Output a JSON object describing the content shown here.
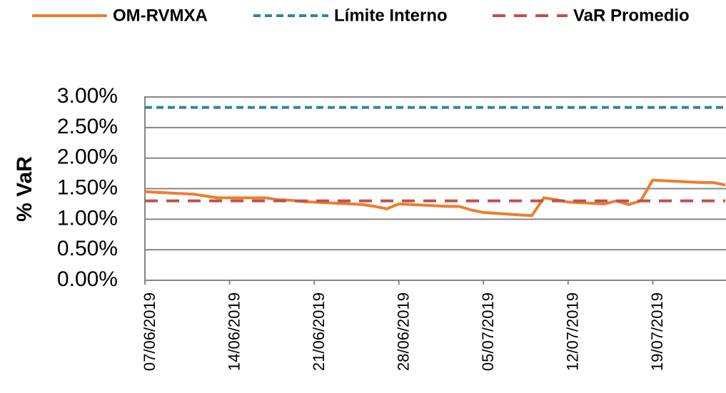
{
  "chart_data": {
    "type": "line",
    "y_label": "% VaR",
    "x": [
      "07/06/2019",
      "10/06/2019",
      "11/06/2019",
      "12/06/2019",
      "13/06/2019",
      "14/06/2019",
      "17/06/2019",
      "18/06/2019",
      "19/06/2019",
      "20/06/2019",
      "21/06/2019",
      "24/06/2019",
      "25/06/2019",
      "26/06/2019",
      "27/06/2019",
      "28/06/2019",
      "01/07/2019",
      "02/07/2019",
      "03/07/2019",
      "04/07/2019",
      "05/07/2019",
      "08/07/2019",
      "09/07/2019",
      "10/07/2019",
      "11/07/2019",
      "12/07/2019",
      "15/07/2019",
      "16/07/2019",
      "17/07/2019",
      "18/07/2019",
      "19/07/2019",
      "22/07/2019",
      "23/07/2019",
      "24/07/2019",
      "25/07/2019"
    ],
    "series": [
      {
        "name": "OM-RVMXA",
        "color": "#ED7D31",
        "style": "solid",
        "values": [
          1.45,
          1.42,
          1.41,
          1.38,
          1.35,
          1.35,
          1.35,
          1.32,
          1.31,
          1.29,
          1.28,
          1.25,
          1.24,
          1.21,
          1.17,
          1.25,
          1.22,
          1.21,
          1.21,
          1.15,
          1.11,
          1.07,
          1.06,
          1.35,
          1.32,
          1.28,
          1.25,
          1.3,
          1.24,
          1.3,
          1.64,
          1.61,
          1.6,
          1.6,
          1.56
        ]
      },
      {
        "name": "Límite Interno",
        "color": "#31859C",
        "style": "dotted",
        "values": [
          2.83,
          2.83,
          2.83,
          2.83,
          2.83,
          2.83,
          2.83,
          2.83,
          2.83,
          2.83,
          2.83,
          2.83,
          2.83,
          2.83,
          2.83,
          2.83,
          2.83,
          2.83,
          2.83,
          2.83,
          2.83,
          2.83,
          2.83,
          2.83,
          2.83,
          2.83,
          2.83,
          2.83,
          2.83,
          2.83,
          2.83,
          2.83,
          2.83,
          2.83,
          2.83
        ]
      },
      {
        "name": "VaR Promedio",
        "color": "#C0504D",
        "style": "dashed",
        "values": [
          1.3,
          1.3,
          1.3,
          1.3,
          1.3,
          1.3,
          1.3,
          1.3,
          1.3,
          1.3,
          1.3,
          1.3,
          1.3,
          1.3,
          1.3,
          1.3,
          1.3,
          1.3,
          1.3,
          1.3,
          1.3,
          1.3,
          1.3,
          1.3,
          1.3,
          1.3,
          1.3,
          1.3,
          1.3,
          1.3,
          1.3,
          1.3,
          1.3,
          1.3,
          1.3
        ]
      }
    ],
    "xlim": [
      "07/06/2019",
      "25/07/2019"
    ],
    "xticks": [
      "07/06/2019",
      "14/06/2019",
      "21/06/2019",
      "28/06/2019",
      "05/07/2019",
      "12/07/2019",
      "19/07/2019"
    ],
    "ylim": [
      0,
      3
    ],
    "yticks": [
      {
        "value": 0,
        "label": "0.00%"
      },
      {
        "value": 0.5,
        "label": "0.50%"
      },
      {
        "value": 1,
        "label": "1.00%"
      },
      {
        "value": 1.5,
        "label": "1.50%"
      },
      {
        "value": 2,
        "label": "2.00%"
      },
      {
        "value": 2.5,
        "label": "2.50%"
      },
      {
        "value": 3,
        "label": "3.00%"
      }
    ],
    "grid": true,
    "legend": "top"
  }
}
